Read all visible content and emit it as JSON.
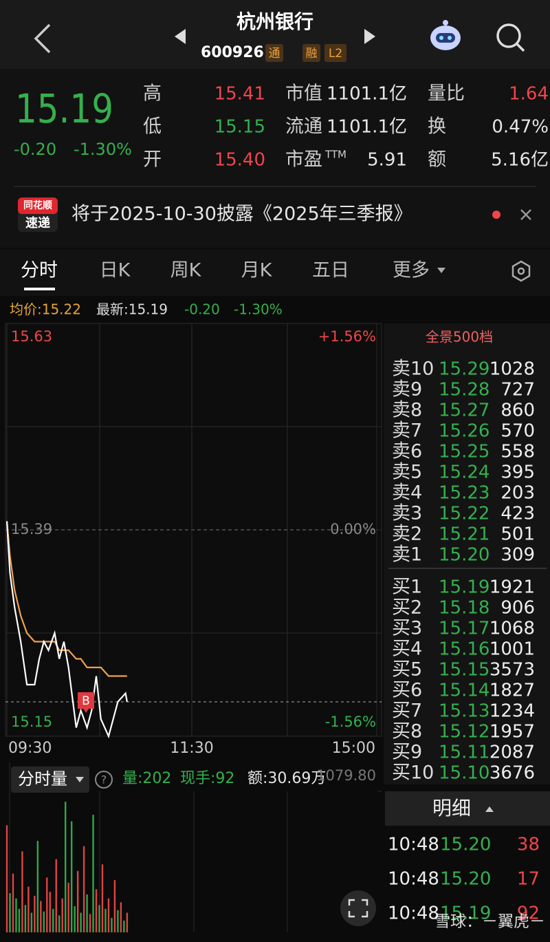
{
  "header": {
    "title": "杭州银行",
    "code": "600926",
    "tags": [
      "通",
      "融",
      "L2"
    ]
  },
  "quote": {
    "price": "15.19",
    "change": "-0.20",
    "change_pct": "-1.30%",
    "stats": [
      {
        "label": "高",
        "value": "15.41",
        "color": "#f0454a"
      },
      {
        "label": "低",
        "value": "15.15",
        "color": "#34b04e"
      },
      {
        "label": "开",
        "value": "15.40",
        "color": "#f0454a"
      },
      {
        "label": "市值",
        "value": "1101.1亿",
        "color": "#e6e6e6"
      },
      {
        "label": "流通",
        "value": "1101.1亿",
        "color": "#e6e6e6"
      },
      {
        "label": "市盈",
        "sup": "TTM",
        "value": "5.91",
        "color": "#e6e6e6"
      },
      {
        "label": "量比",
        "value": "1.64",
        "color": "#f0454a"
      },
      {
        "label": "换",
        "value": "0.47%",
        "color": "#e6e6e6"
      },
      {
        "label": "额",
        "value": "5.16亿",
        "color": "#e6e6e6"
      }
    ]
  },
  "notice": {
    "logo": [
      "同花顺",
      "速递"
    ],
    "text": "将于2025-10-30披露《2025年三季报》"
  },
  "tabs": [
    "分时",
    "日K",
    "周K",
    "月K",
    "五日",
    "更多"
  ],
  "info": [
    "均价:15.22",
    "最新:15.19",
    "-0.20",
    "-1.30%"
  ],
  "chart_data": [
    {
      "type": "line",
      "x": [
        "09:30",
        "09:32",
        "09:35",
        "09:39",
        "09:43",
        "09:48",
        "09:51",
        "09:54",
        "09:57",
        "10:01",
        "10:04",
        "10:07",
        "10:10",
        "10:15",
        "10:18",
        "10:22",
        "10:25",
        "10:28",
        "10:31",
        "10:36",
        "10:39",
        "10:42",
        "10:47",
        "10:48"
      ],
      "series": [
        {
          "color": "#ffffff",
          "values": [
            15.4,
            15.34,
            15.3,
            15.26,
            15.21,
            15.21,
            15.24,
            15.26,
            15.25,
            15.27,
            15.24,
            15.26,
            15.23,
            15.16,
            15.18,
            15.16,
            15.18,
            15.22,
            15.17,
            15.15,
            15.17,
            15.19,
            15.2,
            15.19
          ]
        },
        {
          "color": "#f0a24e",
          "values": [
            15.4,
            15.36,
            15.32,
            15.29,
            15.27,
            15.26,
            15.26,
            15.26,
            15.26,
            15.26,
            15.25,
            15.25,
            15.25,
            15.24,
            15.24,
            15.23,
            15.23,
            15.23,
            15.23,
            15.22,
            15.22,
            15.22,
            15.22,
            15.22
          ]
        }
      ],
      "xlim": [
        "09:30",
        "15:00"
      ],
      "xticks": [
        "09:30",
        "11:30",
        "15:00"
      ],
      "ylim": [
        15.15,
        15.63
      ],
      "yticks": [
        15.63,
        15.39,
        15.15
      ],
      "y2lim": [
        -1.56,
        1.56
      ],
      "y2ticks": [
        {
          "value": 1.56,
          "label": "+1.56%"
        },
        {
          "value": 0,
          "label": "0.00%"
        },
        {
          "value": -1.56,
          "label": "-1.56%"
        }
      ],
      "annotations": [
        "B"
      ]
    },
    {
      "type": "bar",
      "title": "分时量",
      "stats": [
        "量:202",
        "现手:92",
        "额:30.69万"
      ],
      "x": [
        "09:30",
        "09:32",
        "09:34",
        "09:36",
        "09:38",
        "09:40",
        "09:42",
        "09:44",
        "09:46",
        "09:48",
        "09:50",
        "09:52",
        "09:54",
        "09:56",
        "09:58",
        "10:00",
        "10:02",
        "10:04",
        "10:06",
        "10:08",
        "10:10",
        "10:12",
        "10:14",
        "10:16",
        "10:18",
        "10:20",
        "10:22",
        "10:24",
        "10:26",
        "10:28",
        "10:30",
        "10:32",
        "10:34",
        "10:36",
        "10:38",
        "10:40",
        "10:42",
        "10:44",
        "10:46",
        "10:48"
      ],
      "values": [
        820,
        300,
        450,
        260,
        180,
        620,
        210,
        350,
        150,
        280,
        700,
        240,
        160,
        420,
        310,
        180,
        560,
        130,
        260,
        1000,
        380,
        850,
        200,
        470,
        150,
        660,
        290,
        140,
        900,
        330,
        210,
        520,
        180,
        260,
        110,
        400,
        170,
        230,
        90,
        150
      ],
      "colors": [
        "#e04444",
        "#2fa84a",
        "#e04444",
        "#2fa84a",
        "#2fa84a",
        "#e04444",
        "#2fa84a",
        "#e04444",
        "#2fa84a",
        "#e04444",
        "#2fa84a",
        "#e04444",
        "#2fa84a",
        "#e04444",
        "#e04444",
        "#2fa84a",
        "#e04444",
        "#2fa84a",
        "#e04444",
        "#2fa84a",
        "#e04444",
        "#2fa84a",
        "#2fa84a",
        "#e04444",
        "#2fa84a",
        "#e04444",
        "#2fa84a",
        "#e04444",
        "#2fa84a",
        "#e04444",
        "#2fa84a",
        "#e04444",
        "#2fa84a",
        "#e04444",
        "#2fa84a",
        "#e04444",
        "#2fa84a",
        "#e04444",
        "#2fa84a",
        "#e04444"
      ],
      "ylim": [
        0,
        1079.8
      ],
      "yticks": [
        {
          "value": 1079.8,
          "label": "1079.80"
        }
      ]
    }
  ],
  "order_book": {
    "title": "全景500档",
    "asks": [
      {
        "label": "卖10",
        "price": "15.29",
        "volume": "1028"
      },
      {
        "label": "卖9",
        "price": "15.28",
        "volume": "727"
      },
      {
        "label": "卖8",
        "price": "15.27",
        "volume": "860"
      },
      {
        "label": "卖7",
        "price": "15.26",
        "volume": "570"
      },
      {
        "label": "卖6",
        "price": "15.25",
        "volume": "558"
      },
      {
        "label": "卖5",
        "price": "15.24",
        "volume": "395"
      },
      {
        "label": "卖4",
        "price": "15.23",
        "volume": "203"
      },
      {
        "label": "卖3",
        "price": "15.22",
        "volume": "423"
      },
      {
        "label": "卖2",
        "price": "15.21",
        "volume": "501"
      },
      {
        "label": "卖1",
        "price": "15.20",
        "volume": "309"
      }
    ],
    "bids": [
      {
        "label": "买1",
        "price": "15.19",
        "volume": "1921"
      },
      {
        "label": "买2",
        "price": "15.18",
        "volume": "906"
      },
      {
        "label": "买3",
        "price": "15.17",
        "volume": "1068"
      },
      {
        "label": "买4",
        "price": "15.16",
        "volume": "1001"
      },
      {
        "label": "买5",
        "price": "15.15",
        "volume": "3573"
      },
      {
        "label": "买6",
        "price": "15.14",
        "volume": "1827"
      },
      {
        "label": "买7",
        "price": "15.13",
        "volume": "1234"
      },
      {
        "label": "买8",
        "price": "15.12",
        "volume": "1957"
      },
      {
        "label": "买9",
        "price": "15.11",
        "volume": "2087"
      },
      {
        "label": "买10",
        "price": "15.10",
        "volume": "3676"
      }
    ]
  },
  "trades": {
    "title": "明细",
    "rows": [
      {
        "time": "10:48",
        "price": "15.20",
        "volume": "38"
      },
      {
        "time": "10:48",
        "price": "15.20",
        "volume": "17"
      },
      {
        "time": "10:48",
        "price": "15.19",
        "volume": "92"
      }
    ]
  },
  "watermark": "雪球：－翼虎－"
}
